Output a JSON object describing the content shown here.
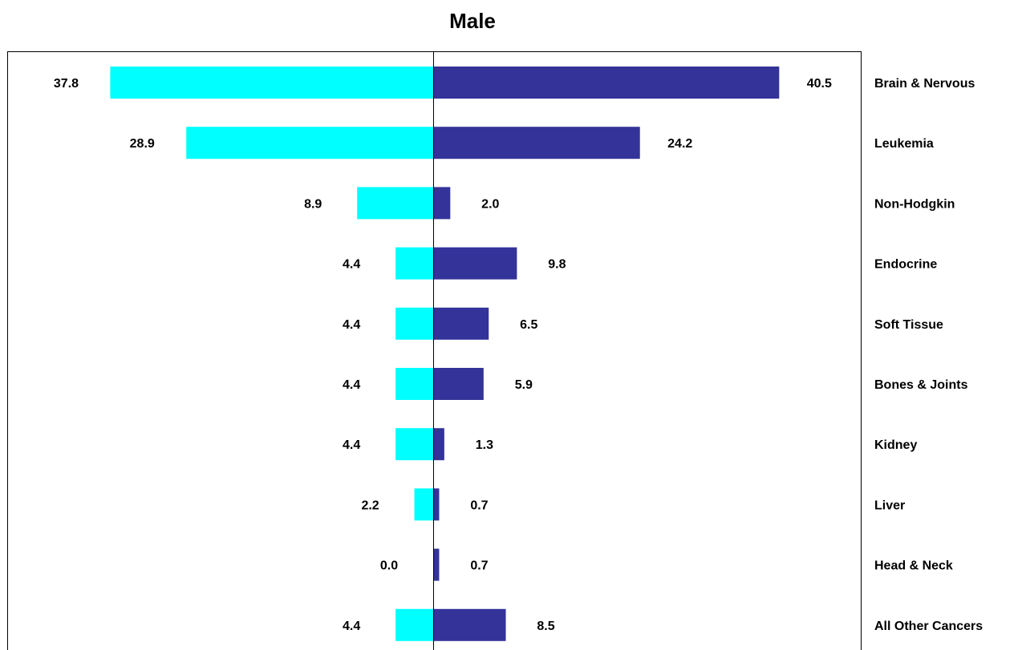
{
  "chart_data": {
    "type": "bar",
    "orientation": "horizontal-diverging",
    "title": "Male",
    "categories": [
      "Brain & Nervous",
      "Leukemia",
      "Non-Hodgkin",
      "Endocrine",
      "Soft Tissue",
      "Bones & Joints",
      "Kidney",
      "Liver",
      "Head & Neck",
      "All Other Cancers"
    ],
    "series": [
      {
        "values": [
          37.8,
          28.9,
          8.9,
          4.4,
          4.4,
          4.4,
          4.4,
          2.2,
          0.0,
          4.4
        ],
        "labels": [
          "37.8",
          "28.9",
          "8.9",
          "4.4",
          "4.4",
          "4.4",
          "4.4",
          "2.2",
          "0.0",
          "4.4"
        ],
        "color": "#00FFFF",
        "side": "left"
      },
      {
        "values": [
          40.5,
          24.2,
          2.0,
          9.8,
          6.5,
          5.9,
          1.3,
          0.7,
          0.7,
          8.5
        ],
        "labels": [
          "40.5",
          "24.2",
          "2.0",
          "9.8",
          "6.5",
          "5.9",
          "1.3",
          "0.7",
          "0.7",
          "8.5"
        ],
        "color": "#333399",
        "side": "right"
      }
    ],
    "grid": false,
    "legend": "none"
  }
}
